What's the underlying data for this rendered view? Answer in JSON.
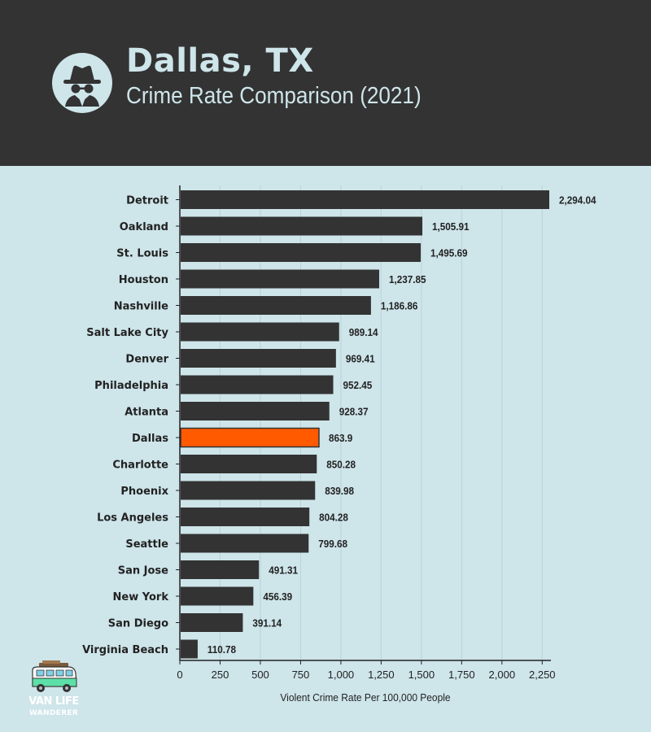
{
  "header": {
    "title": "Dallas, TX",
    "subtitle": "Crime Rate Comparison (2021)",
    "icon": "spy-incognito-icon"
  },
  "brand": {
    "line1": "VAN LIFE",
    "line2": "WANDERER",
    "icon": "camper-van-icon"
  },
  "colors": {
    "header_bg": "#333333",
    "page_bg": "#cee5ea",
    "bar": "#333333",
    "highlight": "#ff5a00",
    "header_text": "#cee5ea"
  },
  "chart_data": {
    "type": "bar",
    "orientation": "horizontal",
    "categories": [
      "Detroit",
      "Oakland",
      "St. Louis",
      "Houston",
      "Nashville",
      "Salt Lake City",
      "Denver",
      "Philadelphia",
      "Atlanta",
      "Dallas",
      "Charlotte",
      "Phoenix",
      "Los Angeles",
      "Seattle",
      "San Jose",
      "New York",
      "San Diego",
      "Virginia Beach"
    ],
    "values": [
      2294.04,
      1505.91,
      1495.69,
      1237.85,
      1186.86,
      989.14,
      969.41,
      952.45,
      928.37,
      863.9,
      850.28,
      839.98,
      804.28,
      799.68,
      491.31,
      456.39,
      391.14,
      110.78
    ],
    "value_labels": [
      "2,294.04",
      "1,505.91",
      "1,495.69",
      "1,237.85",
      "1,186.86",
      "989.14",
      "969.41",
      "952.45",
      "928.37",
      "863.9",
      "850.28",
      "839.98",
      "804.28",
      "799.68",
      "491.31",
      "456.39",
      "391.14",
      "110.78"
    ],
    "highlight": "Dallas",
    "xlabel": "Violent Crime Rate Per 100,000 People",
    "ylabel": "",
    "xlim": [
      0,
      2300
    ],
    "xticks": [
      0,
      250,
      500,
      750,
      1000,
      1250,
      1500,
      1750,
      2000,
      2250
    ],
    "xtick_labels": [
      "0",
      "250",
      "500",
      "750",
      "1,000",
      "1,250",
      "1,500",
      "1,750",
      "2,000",
      "2,250"
    ],
    "grid": true
  }
}
